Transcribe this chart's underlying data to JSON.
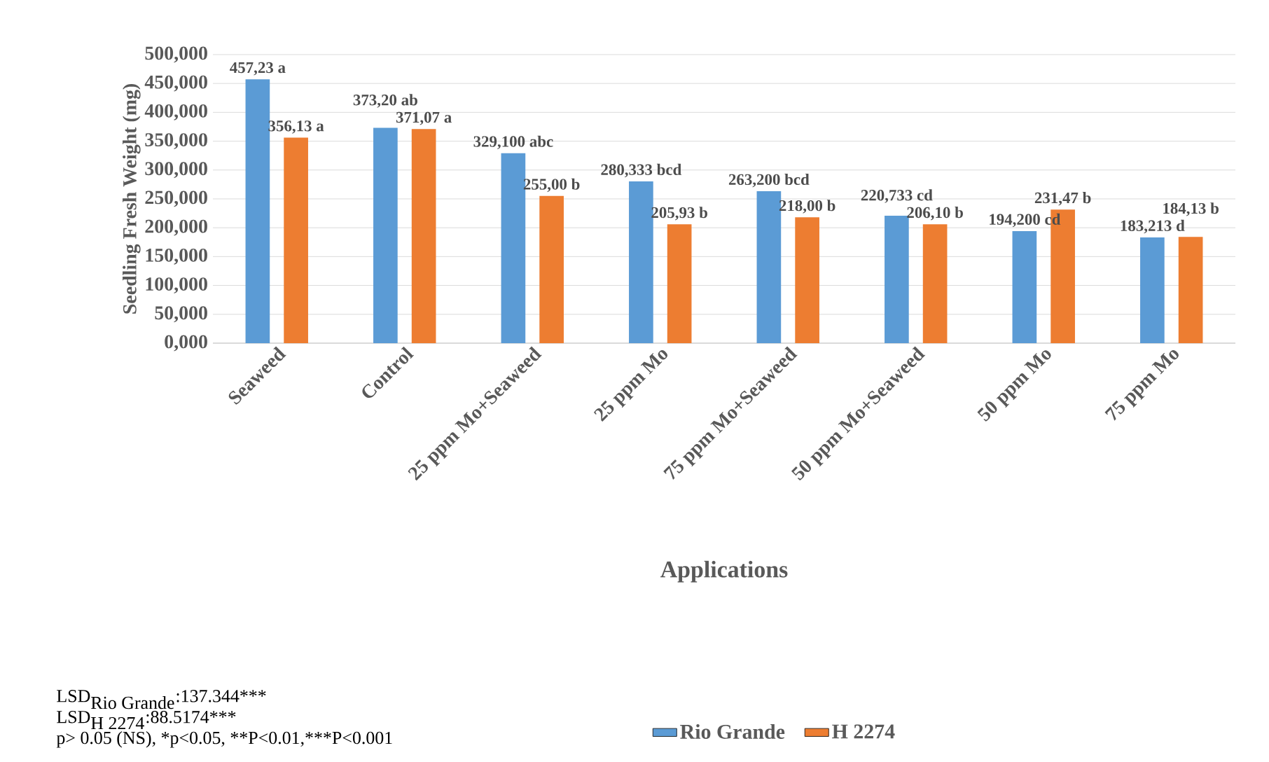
{
  "chart_data": {
    "type": "bar",
    "xlabel": "Applications",
    "ylabel": "Seedling Fresh Weight (mg)",
    "categories": [
      "Seaweed",
      "Control",
      "25 ppm Mo+Seaweed",
      "25 ppm Mo",
      "75 ppm Mo+Seaweed",
      "50  ppm Mo+Seaweed",
      "50  ppm Mo",
      "75 ppm Mo"
    ],
    "series": [
      {
        "name": "Rio Grande",
        "color": "#5b9bd5",
        "values": [
          457.23,
          373.2,
          329.1,
          280.333,
          263.2,
          220.733,
          194.2,
          183.213
        ],
        "value_labels": [
          "457,23 a",
          "373,20 ab",
          "329,100 abc",
          "280,333 bcd",
          "263,200 bcd",
          "220,733 cd",
          "194,200 cd",
          "183,213 d"
        ]
      },
      {
        "name": "H 2274",
        "color": "#ed7d31",
        "values": [
          356.13,
          371.07,
          255.0,
          205.93,
          218.0,
          206.1,
          231.47,
          184.13
        ],
        "value_labels": [
          "356,13 a",
          "371,07 a",
          "255,00 b",
          "205,93 b",
          "218,00 b",
          "206,10 b",
          "231,47 b",
          "184,13 b"
        ]
      }
    ],
    "ylim": [
      0,
      500
    ],
    "yticks": [
      {
        "value": 0,
        "label": "0,000"
      },
      {
        "value": 50,
        "label": "50,000"
      },
      {
        "value": 100,
        "label": "100,000"
      },
      {
        "value": 150,
        "label": "150,000"
      },
      {
        "value": 200,
        "label": "200,000"
      },
      {
        "value": 250,
        "label": "250,000"
      },
      {
        "value": 300,
        "label": "300,000"
      },
      {
        "value": 350,
        "label": "350,000"
      },
      {
        "value": 400,
        "label": "400,000"
      },
      {
        "value": 450,
        "label": "450,000"
      },
      {
        "value": 500,
        "label": "500,000"
      }
    ],
    "grid": "y",
    "legend": "bottom",
    "annotations": [
      "\\mbox{LSD}_{\\mbox{Rio Grande}}\\mbox{:137.344***}",
      "\\mbox{LSD}_{\\mbox{H 2274}}\\mbox{:88.5174***}",
      "\\mbox{p> 0.05 (NS), *p<0.05, **P<0.01,***P<0.001}"
    ]
  }
}
